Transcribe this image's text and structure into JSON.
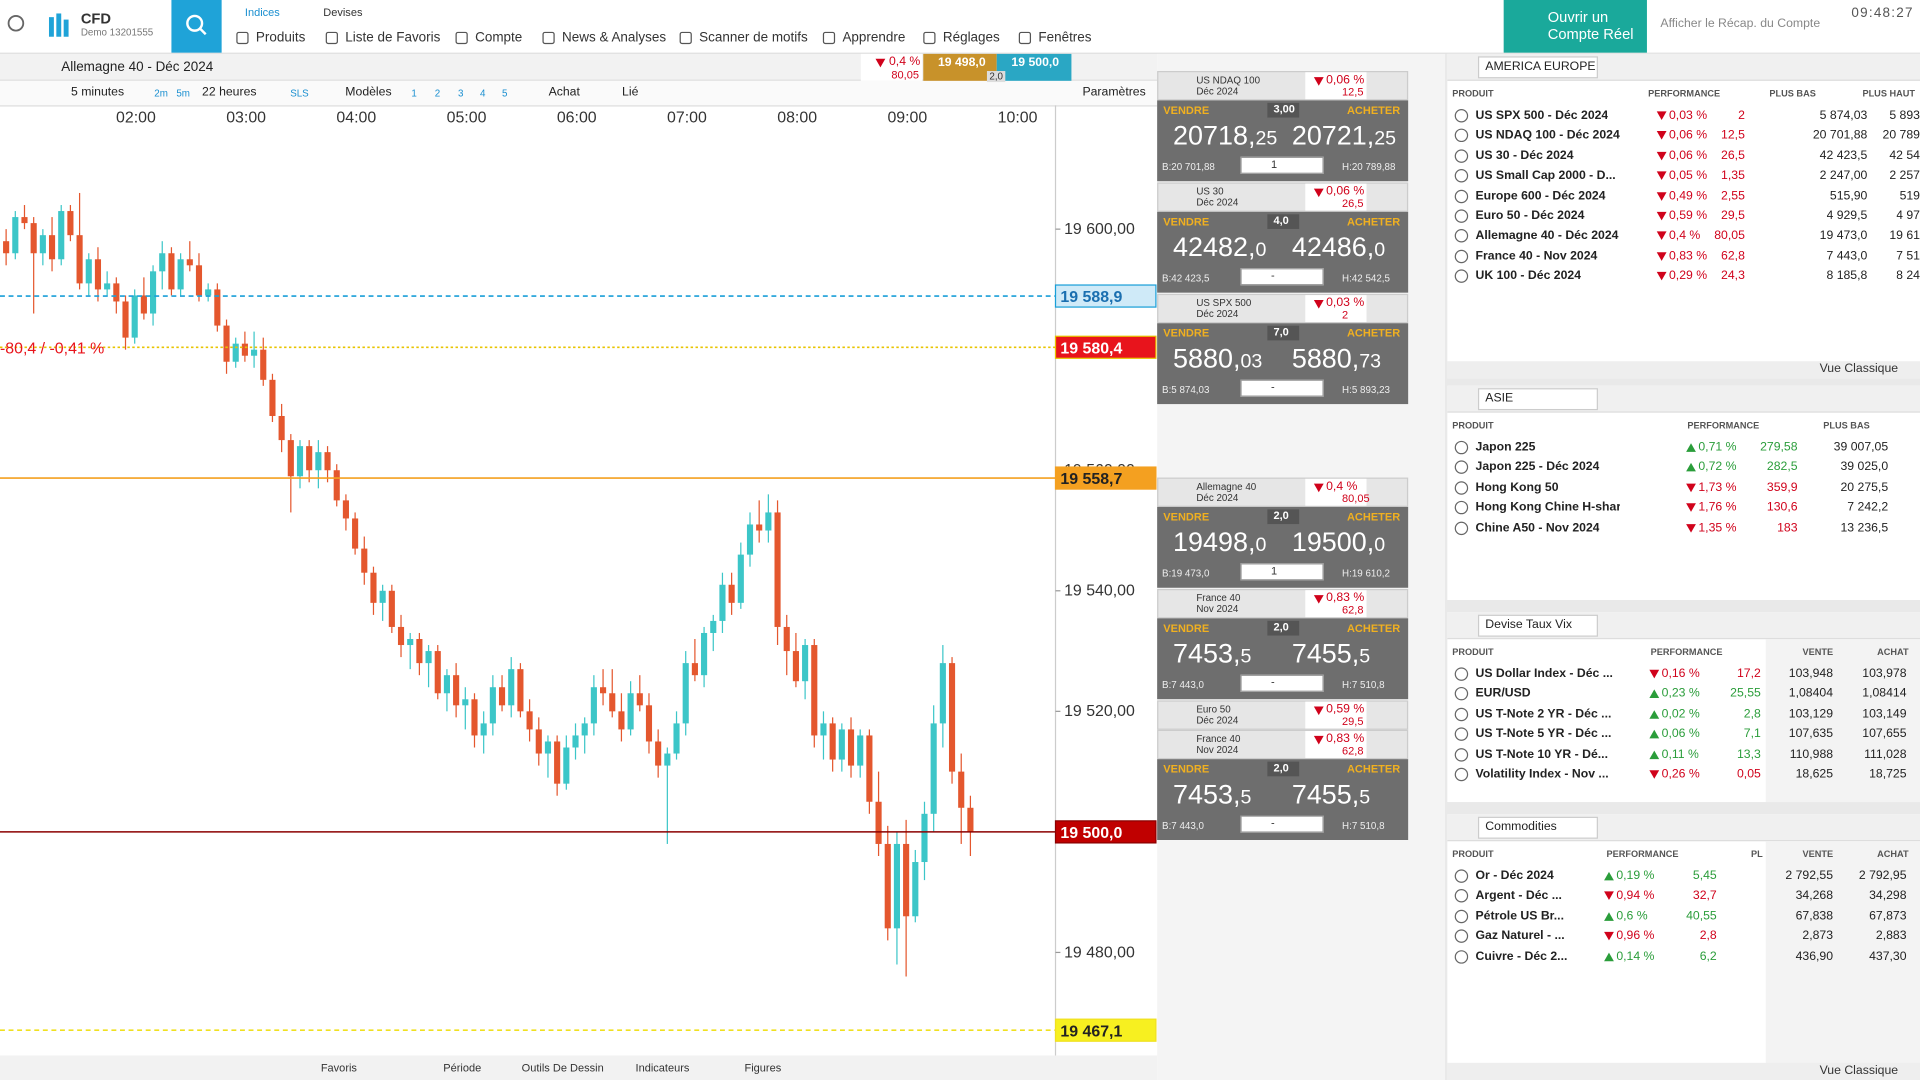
{
  "header": {
    "brand": "CFD",
    "account": "Demo 13201555",
    "tabs": [
      "Indices",
      "Devises"
    ],
    "menu": [
      "Produits",
      "Liste de Favoris",
      "Compte",
      "News & Analyses",
      "Scanner de motifs",
      "Apprendre",
      "Réglages",
      "Fenêtres"
    ],
    "cta": [
      "Ouvrir un",
      "Compte Réel"
    ],
    "summary": "Afficher le Récap. du Compte",
    "clock": "09:48:27"
  },
  "toolbar": {
    "instrument": "Allemagne 40 - Déc 2024",
    "pct": "0,4 %",
    "change": "80,05",
    "sell": "19 498,0",
    "buy": "19 500,0",
    "spread": "2,0",
    "interval": "5 minutes",
    "quick": [
      "2m",
      "5m"
    ],
    "range": "22 heures",
    "sls": "SLS",
    "models": "Modèles",
    "numbers": [
      "1",
      "2",
      "3",
      "4",
      "5"
    ],
    "buy_label": "Achat",
    "link": "Lié",
    "settings": "Paramètres"
  },
  "chart_data": {
    "type": "candlestick",
    "up_color": "#3cc6c8",
    "down_color": "#e4572e",
    "x_labels": [
      "02:00",
      "03:00",
      "04:00",
      "05:00",
      "06:00",
      "07:00",
      "08:00",
      "09:00",
      "10:00"
    ],
    "ylim": [
      19462.9,
      19617.7
    ],
    "yticks": [
      {
        "value": 19480,
        "label": "19 480,00"
      },
      {
        "value": 19520,
        "label": "19 520,00"
      },
      {
        "value": 19540,
        "label": "19 540,00"
      },
      {
        "value": 19560,
        "label": "19 560,00"
      },
      {
        "value": 19600,
        "label": "19 600,00"
      }
    ],
    "annotation": "-80,4 / -0,41 %",
    "levels": [
      {
        "value": 19588.9,
        "label": "19 588,9",
        "color": "#1a9fd8",
        "dash": "4 3",
        "label_bg": "#cfeaf8",
        "label_color": "#1a6fb0"
      },
      {
        "value": 19580.4,
        "label": "19 580,4",
        "color": "#e8c400",
        "dash": "2 2",
        "label_bg": "#e8141c",
        "label_color": "#ffffff"
      },
      {
        "value": 19558.7,
        "label": "19 558,7",
        "color": "#f4a020",
        "dash": "none",
        "label_bg": "#f4a020",
        "label_color": "#222222"
      },
      {
        "value": 19500.0,
        "label": "19 500,0",
        "color": "#8b0000",
        "dash": "none",
        "label_bg": "#c00000",
        "label_color": "#ffffff"
      },
      {
        "value": 19467.1,
        "label": "19 467,1",
        "color": "#f0e020",
        "dash": "4 3",
        "label_bg": "#f7f020",
        "label_color": "#222222"
      }
    ],
    "candles": [
      [
        19598,
        19600,
        19594,
        19596
      ],
      [
        19596,
        19603,
        19595,
        19602
      ],
      [
        19602,
        19604,
        19600,
        19601
      ],
      [
        19601,
        19602,
        19586,
        19596
      ],
      [
        19596,
        19600,
        19594,
        19599
      ],
      [
        19599,
        19602,
        19593,
        19595
      ],
      [
        19595,
        19604,
        19594,
        19603
      ],
      [
        19603,
        19604,
        19598,
        19599
      ],
      [
        19599,
        19606,
        19590,
        19591
      ],
      [
        19591,
        19596,
        19589,
        19595
      ],
      [
        19595,
        19597,
        19588,
        19590
      ],
      [
        19590,
        19593,
        19589,
        19591
      ],
      [
        19591,
        19592,
        19586,
        19588
      ],
      [
        19588,
        19589,
        19580,
        19582
      ],
      [
        19582,
        19590,
        19581,
        19589
      ],
      [
        19589,
        19592,
        19585,
        19586
      ],
      [
        19586,
        19594,
        19584,
        19593
      ],
      [
        19593,
        19598,
        19590,
        19596
      ],
      [
        19596,
        19597,
        19589,
        19590
      ],
      [
        19590,
        19596,
        19589,
        19595
      ],
      [
        19595,
        19598,
        19593,
        19594
      ],
      [
        19594,
        19596,
        19588,
        19589
      ],
      [
        19589,
        19591,
        19588,
        19590
      ],
      [
        19590,
        19591,
        19583,
        19584
      ],
      [
        19584,
        19585,
        19576,
        19578
      ],
      [
        19578,
        19582,
        19577,
        19581
      ],
      [
        19581,
        19583,
        19578,
        19579
      ],
      [
        19579,
        19583,
        19577,
        19580
      ],
      [
        19580,
        19582,
        19574,
        19575
      ],
      [
        19575,
        19576,
        19568,
        19569
      ],
      [
        19569,
        19571,
        19563,
        19565
      ],
      [
        19565,
        19566,
        19553,
        19559
      ],
      [
        19559,
        19565,
        19557,
        19564
      ],
      [
        19564,
        19565,
        19558,
        19560
      ],
      [
        19560,
        19565,
        19557,
        19563
      ],
      [
        19563,
        19564,
        19558,
        19560
      ],
      [
        19560,
        19561,
        19554,
        19555
      ],
      [
        19555,
        19556,
        19550,
        19552
      ],
      [
        19552,
        19553,
        19546,
        19547
      ],
      [
        19547,
        19549,
        19541,
        19543
      ],
      [
        19543,
        19544,
        19536,
        19538
      ],
      [
        19538,
        19541,
        19535,
        19540
      ],
      [
        19540,
        19541,
        19533,
        19534
      ],
      [
        19534,
        19536,
        19529,
        19531
      ],
      [
        19531,
        19533,
        19527,
        19532
      ],
      [
        19532,
        19533,
        19526,
        19528
      ],
      [
        19528,
        19531,
        19524,
        19530
      ],
      [
        19530,
        19531,
        19522,
        19523
      ],
      [
        19523,
        19527,
        19520,
        19526
      ],
      [
        19526,
        19528,
        19519,
        19521
      ],
      [
        19521,
        19524,
        19517,
        19522
      ],
      [
        19522,
        19523,
        19514,
        19516
      ],
      [
        19516,
        19520,
        19513,
        19518
      ],
      [
        19518,
        19526,
        19516,
        19524
      ],
      [
        19524,
        19526,
        19520,
        19521
      ],
      [
        19521,
        19529,
        19519,
        19527
      ],
      [
        19527,
        19528,
        19519,
        19520
      ],
      [
        19520,
        19522,
        19515,
        19517
      ],
      [
        19517,
        19519,
        19511,
        19513
      ],
      [
        19513,
        19516,
        19509,
        19515
      ],
      [
        19515,
        19516,
        19506,
        19508
      ],
      [
        19508,
        19516,
        19507,
        19514
      ],
      [
        19514,
        19518,
        19512,
        19516
      ],
      [
        19516,
        19519,
        19513,
        19518
      ],
      [
        19518,
        19526,
        19516,
        19524
      ],
      [
        19524,
        19527,
        19521,
        19523
      ],
      [
        19523,
        19527,
        19519,
        19520
      ],
      [
        19520,
        19523,
        19515,
        19517
      ],
      [
        19517,
        19525,
        19516,
        19523
      ],
      [
        19523,
        19526,
        19520,
        19521
      ],
      [
        19521,
        19523,
        19513,
        19515
      ],
      [
        19515,
        19517,
        19509,
        19511
      ],
      [
        19511,
        19514,
        19498,
        19513
      ],
      [
        19513,
        19520,
        19512,
        19518
      ],
      [
        19518,
        19530,
        19516,
        19528
      ],
      [
        19528,
        19532,
        19525,
        19526
      ],
      [
        19526,
        19534,
        19524,
        19533
      ],
      [
        19533,
        19536,
        19530,
        19535
      ],
      [
        19535,
        19543,
        19533,
        19541
      ],
      [
        19541,
        19543,
        19536,
        19538
      ],
      [
        19538,
        19548,
        19537,
        19546
      ],
      [
        19546,
        19553,
        19544,
        19551
      ],
      [
        19551,
        19555,
        19548,
        19550
      ],
      [
        19550,
        19556,
        19548,
        19553
      ],
      [
        19553,
        19555,
        19531,
        19534
      ],
      [
        19534,
        19536,
        19526,
        19530
      ],
      [
        19530,
        19533,
        19524,
        19525
      ],
      [
        19525,
        19532,
        19522,
        19531
      ],
      [
        19531,
        19532,
        19514,
        19516
      ],
      [
        19516,
        19520,
        19512,
        19518
      ],
      [
        19518,
        19519,
        19510,
        19512
      ],
      [
        19512,
        19518,
        19510,
        19517
      ],
      [
        19517,
        19519,
        19509,
        19511
      ],
      [
        19511,
        19517,
        19509,
        19516
      ],
      [
        19516,
        19517,
        19503,
        19505
      ],
      [
        19505,
        19510,
        19496,
        19498
      ],
      [
        19498,
        19501,
        19482,
        19484
      ],
      [
        19484,
        19500,
        19478,
        19498
      ],
      [
        19498,
        19502,
        19476,
        19486
      ],
      [
        19486,
        19497,
        19485,
        19495
      ],
      [
        19495,
        19505,
        19492,
        19503
      ],
      [
        19503,
        19521,
        19500,
        19518
      ],
      [
        19518,
        19531,
        19514,
        19528
      ],
      [
        19528,
        19529,
        19508,
        19510
      ],
      [
        19510,
        19513,
        19498,
        19504
      ],
      [
        19504,
        19506,
        19496,
        19500
      ]
    ]
  },
  "bottom": [
    "Favoris",
    "Période",
    "Outils De Dessin",
    "Indicateurs",
    "Figures"
  ],
  "tile_labels": {
    "sell": "VENDRE",
    "buy": "ACHETER"
  },
  "tiles": [
    {
      "name": [
        "US NDAQ 100",
        "Déc 2024"
      ],
      "pct": "0,06 %",
      "change": "12,5",
      "spread": "3,00",
      "sell": "20718,25",
      "buy": "20721,25",
      "low": "B:20 701,88",
      "qty": "1",
      "high": "H:20 789,88"
    },
    {
      "name": [
        "US 30",
        "Déc 2024"
      ],
      "pct": "0,06 %",
      "change": "26,5",
      "spread": "4,0",
      "sell": "42482,0",
      "buy": "42486,0",
      "low": "B:42 423,5",
      "qty": "-",
      "high": "H:42 542,5"
    },
    {
      "name": [
        "US SPX 500",
        "Déc 2024"
      ],
      "pct": "0,03 %",
      "change": "2",
      "spread": "7,0",
      "sell": "5880,03",
      "buy": "5880,73",
      "low": "B:5 874,03",
      "qty": "-",
      "high": "H:5 893,23"
    },
    {
      "name": [
        "Allemagne 40",
        "Déc 2024"
      ],
      "pct": "0,4 %",
      "change": "80,05",
      "spread": "2,0",
      "sell": "19498,0",
      "buy": "19500,0",
      "low": "B:19 473,0",
      "qty": "1",
      "high": "H:19 610,2"
    },
    {
      "name": [
        "France 40",
        "Nov 2024"
      ],
      "pct": "0,83 %",
      "change": "62,8",
      "spread": "2,0",
      "sell": "7453,5",
      "buy": "7455,5",
      "low": "B:7 443,0",
      "qty": "-",
      "high": "H:7 510,8"
    },
    {
      "name": [
        "Euro 50",
        "Déc 2024"
      ],
      "pct": "0,59 %",
      "change": "29,5"
    },
    {
      "name": [
        "France 40",
        "Nov 2024"
      ],
      "pct": "0,83 %",
      "change": "62,8",
      "spread": "2,0",
      "sell": "7453,5",
      "buy": "7455,5",
      "low": "B:7 443,0",
      "qty": "-",
      "high": "H:7 510,8"
    }
  ],
  "watchlists": [
    {
      "title": "AMERICA EUROPE",
      "footer": "Vue Classique",
      "columns": [
        "PRODUIT",
        "PERFORMANCE",
        "PLUS BAS",
        "PLUS HAUT"
      ],
      "rows": [
        {
          "dir": "down",
          "cells": [
            "US SPX 500 - Déc 2024",
            "0,03 %",
            "2",
            "5 874,03",
            "5 893"
          ]
        },
        {
          "dir": "down",
          "cells": [
            "US NDAQ 100 - Déc 2024",
            "0,06 %",
            "12,5",
            "20 701,88",
            "20 789"
          ]
        },
        {
          "dir": "down",
          "cells": [
            "US 30 - Déc 2024",
            "0,06 %",
            "26,5",
            "42 423,5",
            "42 54"
          ]
        },
        {
          "dir": "down",
          "cells": [
            "US Small Cap 2000 - D...",
            "0,05 %",
            "1,35",
            "2 247,00",
            "2 257"
          ]
        },
        {
          "dir": "down",
          "cells": [
            "Europe 600 - Déc 2024",
            "0,49 %",
            "2,55",
            "515,90",
            "519"
          ]
        },
        {
          "dir": "down",
          "cells": [
            "Euro 50 - Déc 2024",
            "0,59 %",
            "29,5",
            "4 929,5",
            "4 97"
          ]
        },
        {
          "dir": "down",
          "cells": [
            "Allemagne 40 - Déc 2024",
            "0,4 %",
            "80,05",
            "19 473,0",
            "19 61"
          ]
        },
        {
          "dir": "down",
          "cells": [
            "France 40 - Nov 2024",
            "0,83 %",
            "62,8",
            "7 443,0",
            "7 51"
          ]
        },
        {
          "dir": "down",
          "cells": [
            "UK 100 - Déc 2024",
            "0,29 %",
            "24,3",
            "8 185,8",
            "8 24"
          ]
        }
      ]
    },
    {
      "title": "ASIE",
      "columns": [
        "PRODUIT",
        "PERFORMANCE",
        "PLUS BAS"
      ],
      "rows": [
        {
          "dir": "up",
          "cells": [
            "Japon 225",
            "0,71 %",
            "279,58",
            "39 007,05"
          ]
        },
        {
          "dir": "up",
          "cells": [
            "Japon 225 - Déc 2024",
            "0,72 %",
            "282,5",
            "39 025,0"
          ]
        },
        {
          "dir": "down",
          "cells": [
            "Hong Kong 50",
            "1,73 %",
            "359,9",
            "20 275,5"
          ]
        },
        {
          "dir": "down",
          "cells": [
            "Hong Kong Chine H-shares ...",
            "1,76 %",
            "130,6",
            "7 242,2"
          ]
        },
        {
          "dir": "down",
          "cells": [
            "Chine A50 - Nov 2024",
            "1,35 %",
            "183",
            "13 236,5"
          ]
        }
      ]
    },
    {
      "title": "Devise Taux Vix",
      "columns": [
        "PRODUIT",
        "PERFORMANCE",
        "VENTE",
        "ACHAT"
      ],
      "rows": [
        {
          "dir": "down",
          "cells": [
            "US Dollar Index - Déc ...",
            "0,16 %",
            "17,2",
            "103,948",
            "103,978"
          ]
        },
        {
          "dir": "up",
          "cells": [
            "EUR/USD",
            "0,23 %",
            "25,55",
            "1,08404",
            "1,08414"
          ]
        },
        {
          "dir": "up",
          "cells": [
            "US T-Note 2 YR - Déc ...",
            "0,02 %",
            "2,8",
            "103,129",
            "103,149"
          ]
        },
        {
          "dir": "up",
          "cells": [
            "US T-Note 5 YR - Déc ...",
            "0,06 %",
            "7,1",
            "107,635",
            "107,655"
          ]
        },
        {
          "dir": "up",
          "cells": [
            "US T-Note 10 YR - Dé...",
            "0,11 %",
            "13,3",
            "110,988",
            "111,028"
          ]
        },
        {
          "dir": "down",
          "cells": [
            "Volatility Index - Nov ...",
            "0,26 %",
            "0,05",
            "18,625",
            "18,725"
          ]
        }
      ]
    },
    {
      "title": "Commodities",
      "footer": "Vue Classique",
      "columns": [
        "PRODUIT",
        "PERFORMANCE",
        "PL",
        "VENTE",
        "ACHAT"
      ],
      "rows": [
        {
          "dir": "up",
          "cells": [
            "Or - Déc 2024",
            "0,19 %",
            "5,45",
            "2 792,55",
            "2 792,95"
          ]
        },
        {
          "dir": "down",
          "cells": [
            "Argent - Déc ...",
            "0,94 %",
            "32,7",
            "34,268",
            "34,298"
          ]
        },
        {
          "dir": "up",
          "cells": [
            "Pétrole US Br...",
            "0,6 %",
            "40,55",
            "67,838",
            "67,873"
          ]
        },
        {
          "dir": "down",
          "cells": [
            "Gaz Naturel - ...",
            "0,96 %",
            "2,8",
            "2,873",
            "2,883"
          ]
        },
        {
          "dir": "up",
          "cells": [
            "Cuivre - Déc 2...",
            "0,14 %",
            "6,2",
            "436,90",
            "437,30"
          ]
        }
      ]
    }
  ]
}
